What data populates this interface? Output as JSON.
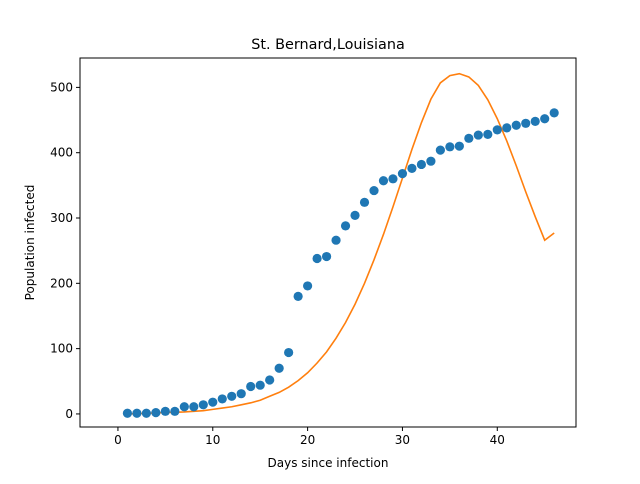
{
  "chart_data": {
    "type": "scatter",
    "title": "St. Bernard,Louisiana",
    "xlabel": "Days since infection",
    "ylabel": "Population infected",
    "xlim": [
      -4.0,
      48.3
    ],
    "ylim": [
      -20,
      545
    ],
    "x_ticks": [
      0,
      10,
      20,
      30,
      40
    ],
    "y_ticks": [
      0,
      100,
      200,
      300,
      400,
      500
    ],
    "grid": false,
    "legend": "none",
    "colors": {
      "points": "#1f77b4",
      "curve": "#ff7f0e",
      "axes": "#000000"
    },
    "series": [
      {
        "kind": "scatter",
        "x": [
          1,
          2,
          3,
          4,
          5,
          6,
          7,
          8,
          9,
          10,
          11,
          12,
          13,
          14,
          15,
          16,
          17,
          18,
          19,
          20,
          21,
          22,
          23,
          24,
          25,
          26,
          27,
          28,
          29,
          30,
          31,
          32,
          33,
          34,
          35,
          36,
          37,
          38,
          39,
          40,
          41,
          42,
          43,
          44,
          45,
          46
        ],
        "y": [
          1,
          1,
          1,
          2,
          4,
          4,
          11,
          11,
          14,
          18,
          23,
          27,
          31,
          42,
          44,
          52,
          70,
          94,
          180,
          196,
          238,
          241,
          266,
          288,
          304,
          324,
          342,
          357,
          360,
          368,
          376,
          382,
          387,
          404,
          409,
          410,
          422,
          427,
          428,
          435,
          438,
          442,
          445,
          448,
          452,
          461
        ]
      },
      {
        "kind": "line",
        "x": [
          1,
          2,
          3,
          4,
          5,
          6,
          7,
          8,
          9,
          10,
          11,
          12,
          13,
          14,
          15,
          16,
          17,
          18,
          19,
          20,
          21,
          22,
          23,
          24,
          25,
          26,
          27,
          28,
          29,
          30,
          31,
          32,
          33,
          34,
          35,
          36,
          37,
          38,
          39,
          40,
          41,
          42,
          43,
          44,
          45,
          46
        ],
        "y": [
          0,
          0.5,
          1,
          1.5,
          2,
          2.5,
          3,
          4,
          5,
          7,
          9,
          11,
          14,
          17,
          21,
          27,
          33,
          41,
          51,
          63,
          78,
          95,
          116,
          140,
          168,
          200,
          236,
          275,
          317,
          361,
          405,
          446,
          482,
          507,
          518,
          521,
          516,
          503,
          481,
          452,
          418,
          380,
          340,
          302,
          266,
          277
        ]
      }
    ]
  }
}
